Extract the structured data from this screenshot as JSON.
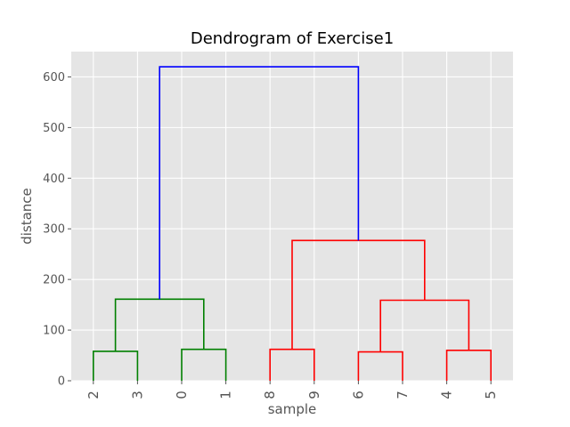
{
  "chart_data": {
    "type": "dendrogram",
    "title": "Dendrogram of Exercise1",
    "xlabel": "sample",
    "ylabel": "distance",
    "leaf_order": [
      "2",
      "3",
      "0",
      "1",
      "8",
      "9",
      "6",
      "7",
      "4",
      "5"
    ],
    "ylim": [
      0,
      650
    ],
    "yticks": [
      0,
      100,
      200,
      300,
      400,
      500,
      600
    ],
    "grid": true,
    "background": "#e5e5e5",
    "links": [
      {
        "x": [
          1,
          1,
          2,
          2
        ],
        "y": [
          0,
          58,
          58,
          0
        ],
        "color": "#008000"
      },
      {
        "x": [
          3,
          3,
          4,
          4
        ],
        "y": [
          0,
          62,
          62,
          0
        ],
        "color": "#008000"
      },
      {
        "x": [
          1.5,
          1.5,
          3.5,
          3.5
        ],
        "y": [
          58,
          161,
          161,
          62
        ],
        "color": "#008000"
      },
      {
        "x": [
          5,
          5,
          6,
          6
        ],
        "y": [
          0,
          62,
          62,
          0
        ],
        "color": "#ff0000"
      },
      {
        "x": [
          7,
          7,
          8,
          8
        ],
        "y": [
          0,
          57,
          57,
          0
        ],
        "color": "#ff0000"
      },
      {
        "x": [
          9,
          9,
          10,
          10
        ],
        "y": [
          0,
          60,
          60,
          0
        ],
        "color": "#ff0000"
      },
      {
        "x": [
          7.5,
          7.5,
          9.5,
          9.5
        ],
        "y": [
          57,
          159,
          159,
          60
        ],
        "color": "#ff0000"
      },
      {
        "x": [
          5.5,
          5.5,
          8.5,
          8.5
        ],
        "y": [
          62,
          277,
          277,
          159
        ],
        "color": "#ff0000"
      },
      {
        "x": [
          2.5,
          2.5,
          7,
          7
        ],
        "y": [
          161,
          620,
          620,
          277
        ],
        "color": "#0000ff"
      }
    ]
  }
}
